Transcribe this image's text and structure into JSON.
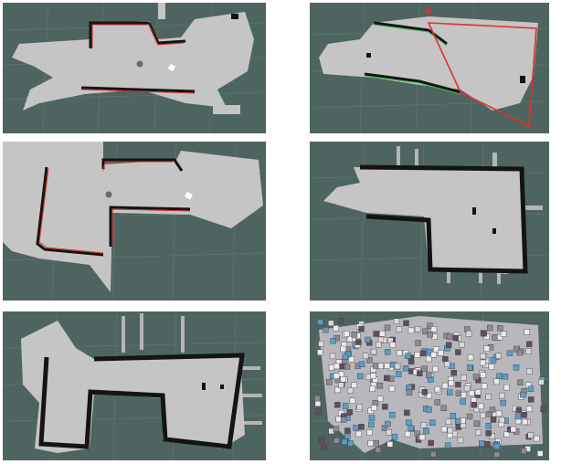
{
  "figure": {
    "panels": [
      {
        "id": "map-a",
        "kind": "2d-occupancy-grid",
        "overlay": "red-laser-scan"
      },
      {
        "id": "map-b",
        "kind": "2d-occupancy-grid",
        "overlay": "green-laser-scan-and-red-boundary"
      },
      {
        "id": "map-c",
        "kind": "2d-occupancy-grid",
        "overlay": "red-laser-scan"
      },
      {
        "id": "map-d",
        "kind": "2d-occupancy-grid",
        "overlay": "none"
      },
      {
        "id": "map-e",
        "kind": "2d-occupancy-grid",
        "overlay": "none"
      },
      {
        "id": "map-f",
        "kind": "3d-voxel-map",
        "overlay": "none"
      }
    ]
  },
  "colors": {
    "background": "#4e6460",
    "grid_line": "#6c807c",
    "free_space": "#c5c5c5",
    "obstacle": "#141414",
    "laser_red": "#e0302e",
    "laser_green": "#38c448",
    "voxel_blue": "#5a9ec4",
    "voxel_gray": "#8e8a90",
    "voxel_white": "#ebebeb"
  }
}
